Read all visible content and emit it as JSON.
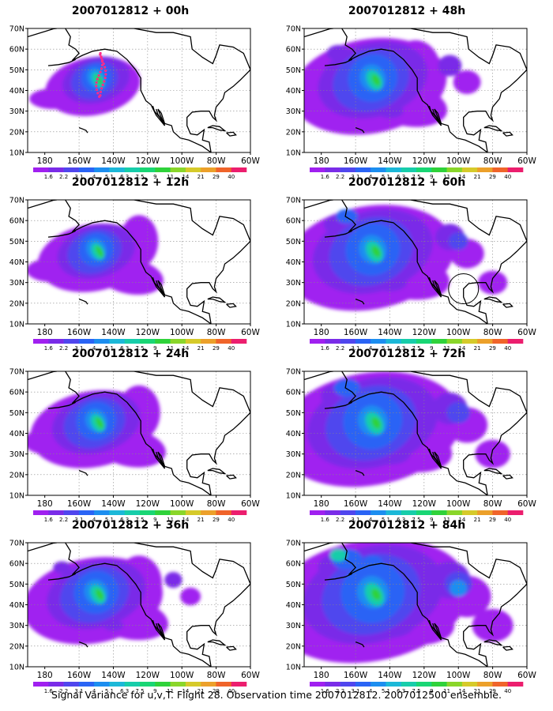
{
  "caption": "Signal Variance for u,v,T. Flight 28. Observation time 2007012812. 2007012500 ensemble.",
  "chart_data": [
    {
      "type": "heatmap",
      "title": "2007012812 + 00h",
      "lead": 0,
      "col": 0,
      "row": 0
    },
    {
      "type": "heatmap",
      "title": "2007012812 + 12h",
      "lead": 12,
      "col": 0,
      "row": 1
    },
    {
      "type": "heatmap",
      "title": "2007012812 + 24h",
      "lead": 24,
      "col": 0,
      "row": 2
    },
    {
      "type": "heatmap",
      "title": "2007012812 + 36h",
      "lead": 36,
      "col": 0,
      "row": 3
    },
    {
      "type": "heatmap",
      "title": "2007012812 + 48h",
      "lead": 48,
      "col": 1,
      "row": 0
    },
    {
      "type": "heatmap",
      "title": "2007012812 + 60h",
      "lead": 60,
      "col": 1,
      "row": 1
    },
    {
      "type": "heatmap",
      "title": "2007012812 + 72h",
      "lead": 72,
      "col": 1,
      "row": 2
    },
    {
      "type": "heatmap",
      "title": "2007012812 + 84h",
      "lead": 84,
      "col": 1,
      "row": 3
    }
  ],
  "x_ticks": [
    "180",
    "160W",
    "140W",
    "120W",
    "100W",
    "80W",
    "60W"
  ],
  "x_values": [
    180,
    160,
    140,
    120,
    100,
    80,
    60
  ],
  "y_ticks": [
    "10N",
    "20N",
    "30N",
    "40N",
    "50N",
    "60N",
    "70N"
  ],
  "y_values": [
    10,
    20,
    30,
    40,
    50,
    60,
    70
  ],
  "xlim": [
    190,
    60
  ],
  "ylim": [
    10,
    70
  ],
  "grid": true,
  "colorbar": {
    "labels": [
      "1.6",
      "2.2",
      "3.1",
      "4",
      "5.1",
      "6.3",
      "7.5",
      "9",
      "11",
      "14",
      "21",
      "29",
      "40"
    ],
    "colors": [
      "#a020f0",
      "#7a2ce8",
      "#5046ee",
      "#2a64f5",
      "#1c8ef0",
      "#1cb8d8",
      "#17cdaa",
      "#19d674",
      "#2fd23a",
      "#8ad62a",
      "#d6ca2a",
      "#eca02a",
      "#f0642a",
      "#ec1e6e"
    ]
  }
}
